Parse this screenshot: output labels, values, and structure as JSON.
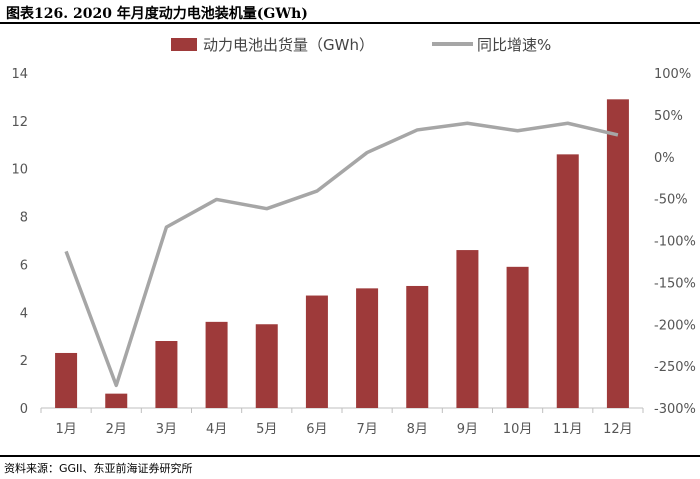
{
  "figure_title": "图表126. 2020 年月度动力电池装机量(GWh)",
  "source": "资料来源：GGII、东亚前海证券研究所",
  "colors": {
    "bar": "#9e3a3a",
    "line": "#a6a6a6",
    "axis": "#bfbfbf"
  },
  "chart_data": {
    "type": "bar",
    "categories": [
      "1月",
      "2月",
      "3月",
      "4月",
      "5月",
      "6月",
      "7月",
      "8月",
      "9月",
      "10月",
      "11月",
      "12月"
    ],
    "series": [
      {
        "name": "动力电池出货量（GWh）",
        "type": "bar",
        "axis": "left",
        "values": [
          2.3,
          0.6,
          2.8,
          3.6,
          3.5,
          4.7,
          5.0,
          5.1,
          6.6,
          5.9,
          10.6,
          12.9
        ]
      },
      {
        "name": "同比增速%",
        "type": "line",
        "axis": "right",
        "values": [
          -113,
          -273,
          -84,
          -51,
          -62,
          -41,
          5,
          32,
          40,
          31,
          40,
          26
        ]
      }
    ],
    "y_left": {
      "lim": [
        0,
        14
      ],
      "ticks": [
        0,
        2,
        4,
        6,
        8,
        10,
        12,
        14
      ],
      "tick_labels": [
        "0",
        "2",
        "4",
        "6",
        "8",
        "10",
        "12",
        "14"
      ]
    },
    "y_right": {
      "lim": [
        -300,
        100
      ],
      "ticks": [
        -300,
        -250,
        -200,
        -150,
        -100,
        -50,
        0,
        50,
        100
      ],
      "tick_labels": [
        "-300%",
        "-250%",
        "-200%",
        "-150%",
        "-100%",
        "-50%",
        "0%",
        "50%",
        "100%"
      ]
    },
    "legend": "top-center",
    "grid": false
  }
}
